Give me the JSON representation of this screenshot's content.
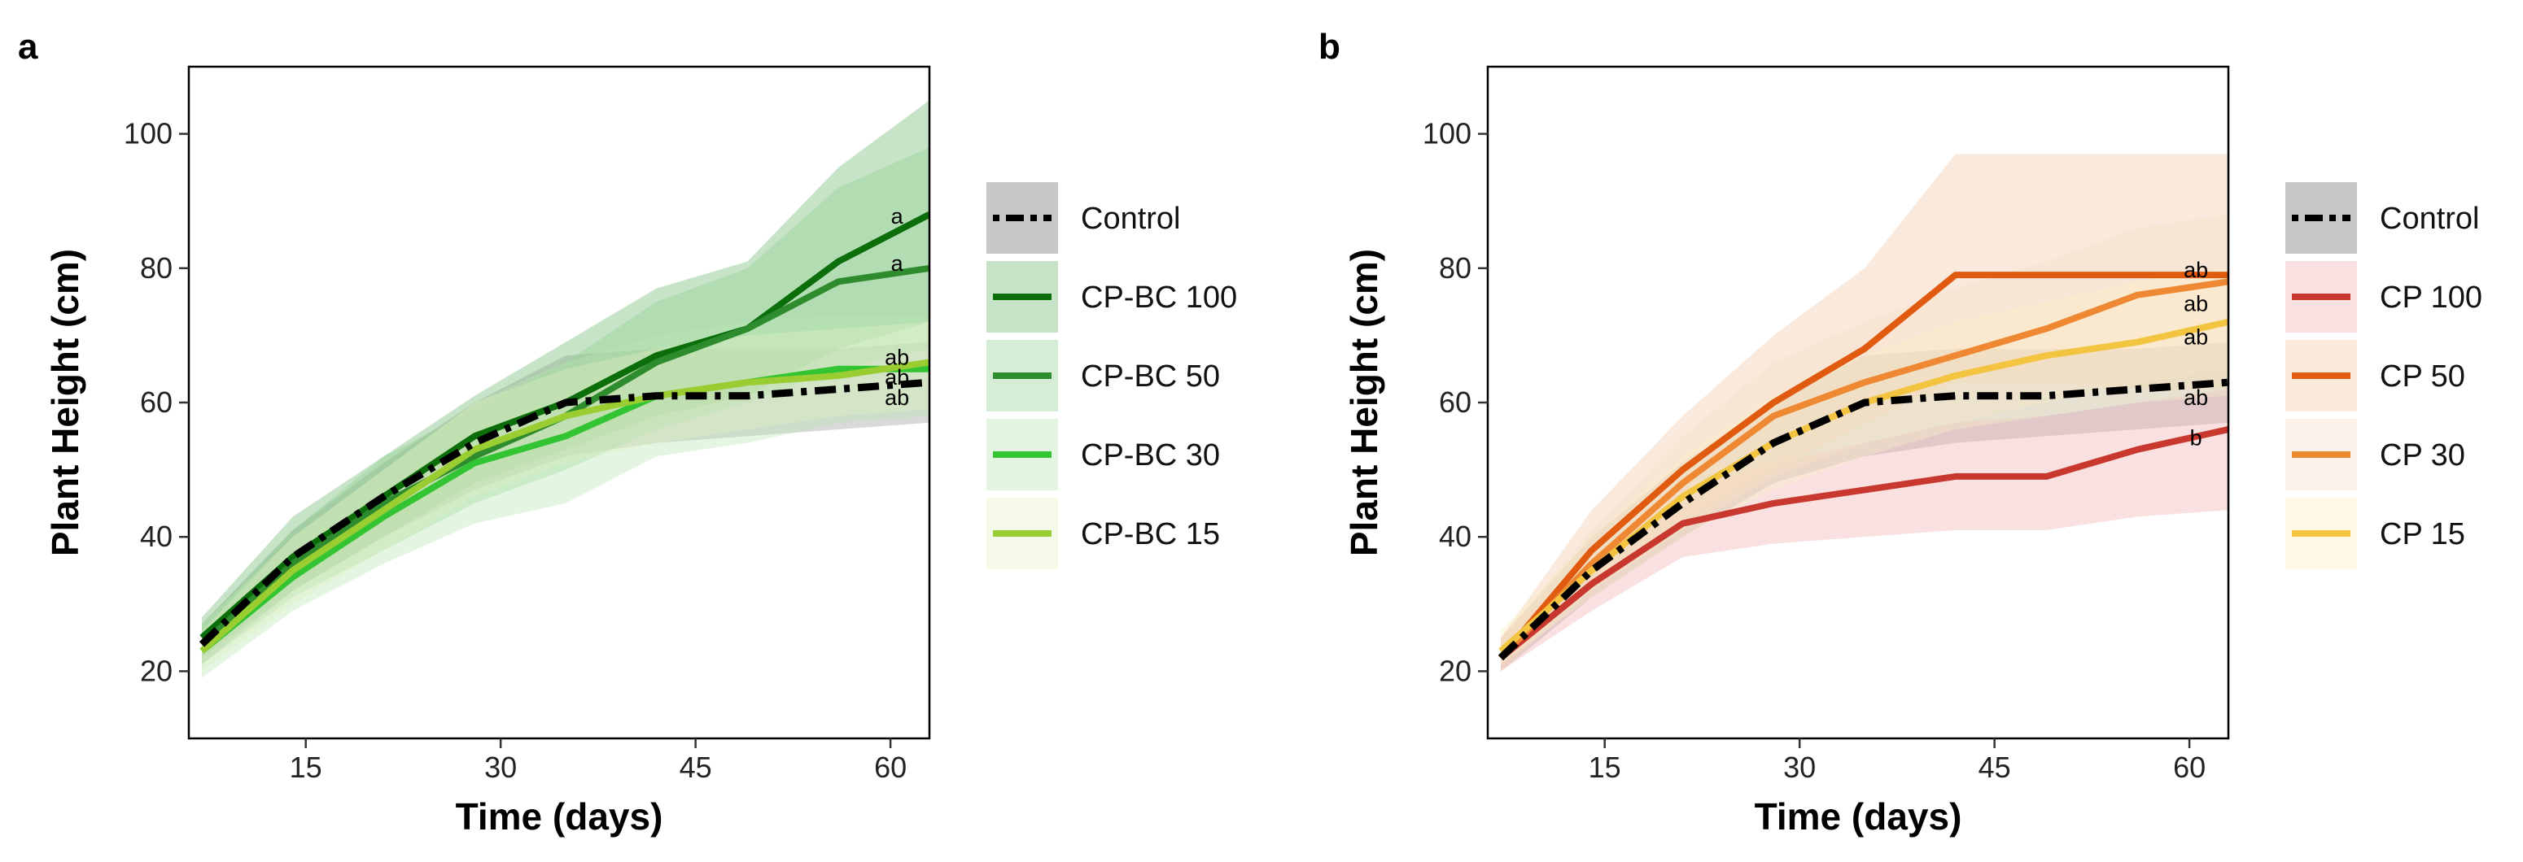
{
  "chart_data": [
    {
      "panel_label": "a",
      "type": "line",
      "title": "",
      "xlabel": "Time (days)",
      "ylabel": "Plant Height (cm)",
      "xlim": [
        6,
        63
      ],
      "ylim": [
        10,
        110
      ],
      "xticks": [
        15,
        30,
        45,
        60
      ],
      "yticks": [
        20,
        40,
        60,
        80,
        100
      ],
      "grid": false,
      "legend_position": "right",
      "x": [
        7,
        14,
        21,
        28,
        35,
        42,
        49,
        56,
        63
      ],
      "series": [
        {
          "name": "Control",
          "color": "#000000",
          "band_color": "#9a9a9a",
          "dashed": true,
          "values": [
            24,
            37,
            46,
            54,
            60,
            61,
            61,
            62,
            63
          ],
          "lower": [
            21,
            32,
            40,
            47,
            52,
            54,
            55,
            56,
            57
          ],
          "upper": [
            27,
            41,
            51,
            60,
            67,
            68,
            68,
            68,
            69
          ]
        },
        {
          "name": "CP-BC 100",
          "color": "#0b6e0b",
          "band_color": "#6fb96f",
          "dashed": false,
          "values": [
            25,
            37,
            46,
            55,
            60,
            67,
            71,
            81,
            88
          ],
          "lower": [
            22,
            32,
            40,
            48,
            53,
            58,
            61,
            68,
            72
          ],
          "upper": [
            28,
            43,
            52,
            61,
            69,
            77,
            81,
            95,
            105
          ]
        },
        {
          "name": "CP-BC 50",
          "color": "#2e8b2e",
          "band_color": "#8fcf8f",
          "dashed": false,
          "values": [
            24,
            36,
            45,
            52,
            58,
            66,
            71,
            78,
            80
          ],
          "lower": [
            21,
            31,
            38,
            45,
            50,
            56,
            60,
            65,
            68
          ],
          "upper": [
            27,
            41,
            52,
            59,
            66,
            75,
            80,
            92,
            98
          ]
        },
        {
          "name": "CP-BC 30",
          "color": "#33c433",
          "band_color": "#b9e8b4",
          "dashed": false,
          "values": [
            23,
            34,
            43,
            51,
            55,
            61,
            63,
            65,
            65
          ],
          "lower": [
            19,
            29,
            36,
            42,
            45,
            52,
            54,
            57,
            58
          ],
          "upper": [
            27,
            40,
            50,
            60,
            66,
            70,
            72,
            73,
            73
          ]
        },
        {
          "name": "CP-BC 15",
          "color": "#9acd32",
          "band_color": "#e3f0c2",
          "dashed": false,
          "values": [
            23,
            35,
            44,
            53,
            58,
            61,
            63,
            64,
            66
          ],
          "lower": [
            20,
            30,
            38,
            46,
            51,
            54,
            56,
            58,
            59
          ],
          "upper": [
            26,
            40,
            50,
            60,
            65,
            68,
            70,
            71,
            72
          ]
        }
      ],
      "annotations": [
        {
          "text": "a",
          "x": 60.5,
          "y": 87.5
        },
        {
          "text": "a",
          "x": 60.5,
          "y": 80.5
        },
        {
          "text": "ab",
          "x": 60.5,
          "y": 66.5
        },
        {
          "text": "ab",
          "x": 60.5,
          "y": 63.5
        },
        {
          "text": "ab",
          "x": 60.5,
          "y": 60.5
        }
      ]
    },
    {
      "panel_label": "b",
      "type": "line",
      "title": "",
      "xlabel": "Time (days)",
      "ylabel": "Plant Height (cm)",
      "xlim": [
        6,
        63
      ],
      "ylim": [
        10,
        110
      ],
      "xticks": [
        15,
        30,
        45,
        60
      ],
      "yticks": [
        20,
        40,
        60,
        80,
        100
      ],
      "grid": false,
      "legend_position": "right",
      "x": [
        7,
        14,
        21,
        28,
        35,
        42,
        49,
        56,
        63
      ],
      "series": [
        {
          "name": "Control",
          "color": "#000000",
          "band_color": "#9a9a9a",
          "dashed": true,
          "values": [
            22,
            35,
            45,
            54,
            60,
            61,
            61,
            62,
            63
          ],
          "lower": [
            20,
            31,
            40,
            48,
            52,
            54,
            55,
            56,
            57
          ],
          "upper": [
            25,
            40,
            51,
            60,
            67,
            68,
            68,
            68,
            69
          ]
        },
        {
          "name": "CP 100",
          "color": "#c8382e",
          "band_color": "#f0b1b1",
          "dashed": false,
          "values": [
            22,
            33,
            42,
            45,
            47,
            49,
            49,
            53,
            56
          ],
          "lower": [
            20,
            29,
            37,
            39,
            40,
            41,
            41,
            43,
            44
          ],
          "upper": [
            25,
            37,
            47,
            51,
            54,
            57,
            58,
            60,
            62
          ]
        },
        {
          "name": "CP 50",
          "color": "#e05a10",
          "band_color": "#f3c8a8",
          "dashed": false,
          "values": [
            22,
            38,
            50,
            60,
            68,
            79,
            79,
            79,
            79
          ],
          "lower": [
            20,
            33,
            42,
            50,
            57,
            63,
            63,
            62,
            62
          ],
          "upper": [
            25,
            44,
            58,
            70,
            80,
            97,
            97,
            97,
            97
          ]
        },
        {
          "name": "CP 30",
          "color": "#ee8833",
          "band_color": "#f8dcc4",
          "dashed": false,
          "values": [
            22,
            36,
            48,
            58,
            63,
            67,
            71,
            76,
            78
          ],
          "lower": [
            20,
            32,
            41,
            49,
            54,
            57,
            60,
            63,
            65
          ],
          "upper": [
            25,
            41,
            55,
            66,
            72,
            77,
            81,
            86,
            88
          ]
        },
        {
          "name": "CP 15",
          "color": "#f2c440",
          "band_color": "#fcefc6",
          "dashed": false,
          "values": [
            23,
            35,
            46,
            54,
            60,
            64,
            67,
            69,
            72
          ],
          "lower": [
            21,
            31,
            40,
            47,
            52,
            56,
            58,
            60,
            61
          ],
          "upper": [
            26,
            40,
            52,
            61,
            67,
            72,
            75,
            78,
            80
          ]
        }
      ],
      "annotations": [
        {
          "text": "ab",
          "x": 60.5,
          "y": 79.5
        },
        {
          "text": "ab",
          "x": 60.5,
          "y": 74.5
        },
        {
          "text": "ab",
          "x": 60.5,
          "y": 69.5
        },
        {
          "text": "ab",
          "x": 60.5,
          "y": 60.5
        },
        {
          "text": "b",
          "x": 60.5,
          "y": 54.5
        }
      ]
    }
  ]
}
